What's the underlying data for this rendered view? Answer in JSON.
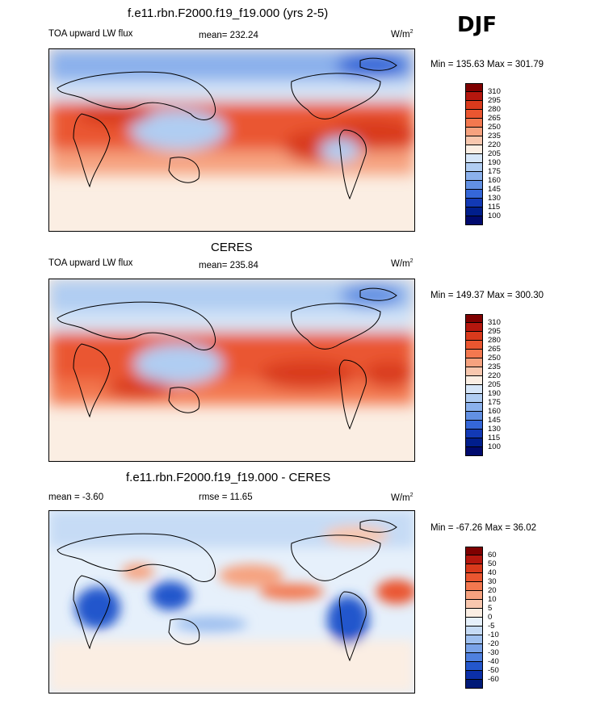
{
  "season": "DJF",
  "chart_data": [
    {
      "type": "heatmap",
      "title": "f.e11.rbn.F2000.f19_f19.000 (yrs 2-5)",
      "left_label": "TOA upward LW flux",
      "center_label": "mean= 232.24",
      "units": "W/m",
      "units_sup": "2",
      "minmax": "Min = 135.63 Max = 301.79",
      "colorbar_levels": [
        "310",
        "295",
        "280",
        "265",
        "250",
        "235",
        "220",
        "205",
        "190",
        "175",
        "160",
        "145",
        "130",
        "115",
        "100"
      ],
      "colors": [
        "#7f0000",
        "#b5170e",
        "#d93a1c",
        "#ea5630",
        "#f3784f",
        "#f6a27f",
        "#f8c7ae",
        "#fbeee3",
        "#d6e6f8",
        "#b0cdf2",
        "#8bb1ec",
        "#6290e3",
        "#3567d8",
        "#1239b5",
        "#001e8c",
        "#000a6e"
      ]
    },
    {
      "type": "heatmap",
      "title": "CERES",
      "left_label": "TOA upward LW flux",
      "center_label": "mean= 235.84",
      "units": "W/m",
      "units_sup": "2",
      "minmax": "Min = 149.37 Max = 300.30",
      "colorbar_levels": [
        "310",
        "295",
        "280",
        "265",
        "250",
        "235",
        "220",
        "205",
        "190",
        "175",
        "160",
        "145",
        "130",
        "115",
        "100"
      ],
      "colors": [
        "#7f0000",
        "#b5170e",
        "#d93a1c",
        "#ea5630",
        "#f3784f",
        "#f6a27f",
        "#f8c7ae",
        "#fbeee3",
        "#d6e6f8",
        "#b0cdf2",
        "#8bb1ec",
        "#6290e3",
        "#3567d8",
        "#1239b5",
        "#001e8c",
        "#000a6e"
      ]
    },
    {
      "type": "heatmap",
      "title": "f.e11.rbn.F2000.f19_f19.000 - CERES",
      "left_label": "mean =  -3.60",
      "center_label": "rmse =  11.65",
      "units": "W/m",
      "units_sup": "2",
      "minmax": "Min = -67.26 Max =  36.02",
      "colorbar_levels": [
        "60",
        "50",
        "40",
        "30",
        "20",
        "10",
        "5",
        "0",
        "-5",
        "-10",
        "-20",
        "-30",
        "-40",
        "-50",
        "-60"
      ],
      "colors": [
        "#7f0000",
        "#b5170e",
        "#d93a1c",
        "#ea5630",
        "#f3784f",
        "#f6a27f",
        "#f8c7ae",
        "#fbeee3",
        "#e6f0fb",
        "#c6dbf5",
        "#9fc0ef",
        "#7aa3e8",
        "#4f80df",
        "#2457cc",
        "#0b2fa8",
        "#001a78"
      ]
    }
  ]
}
